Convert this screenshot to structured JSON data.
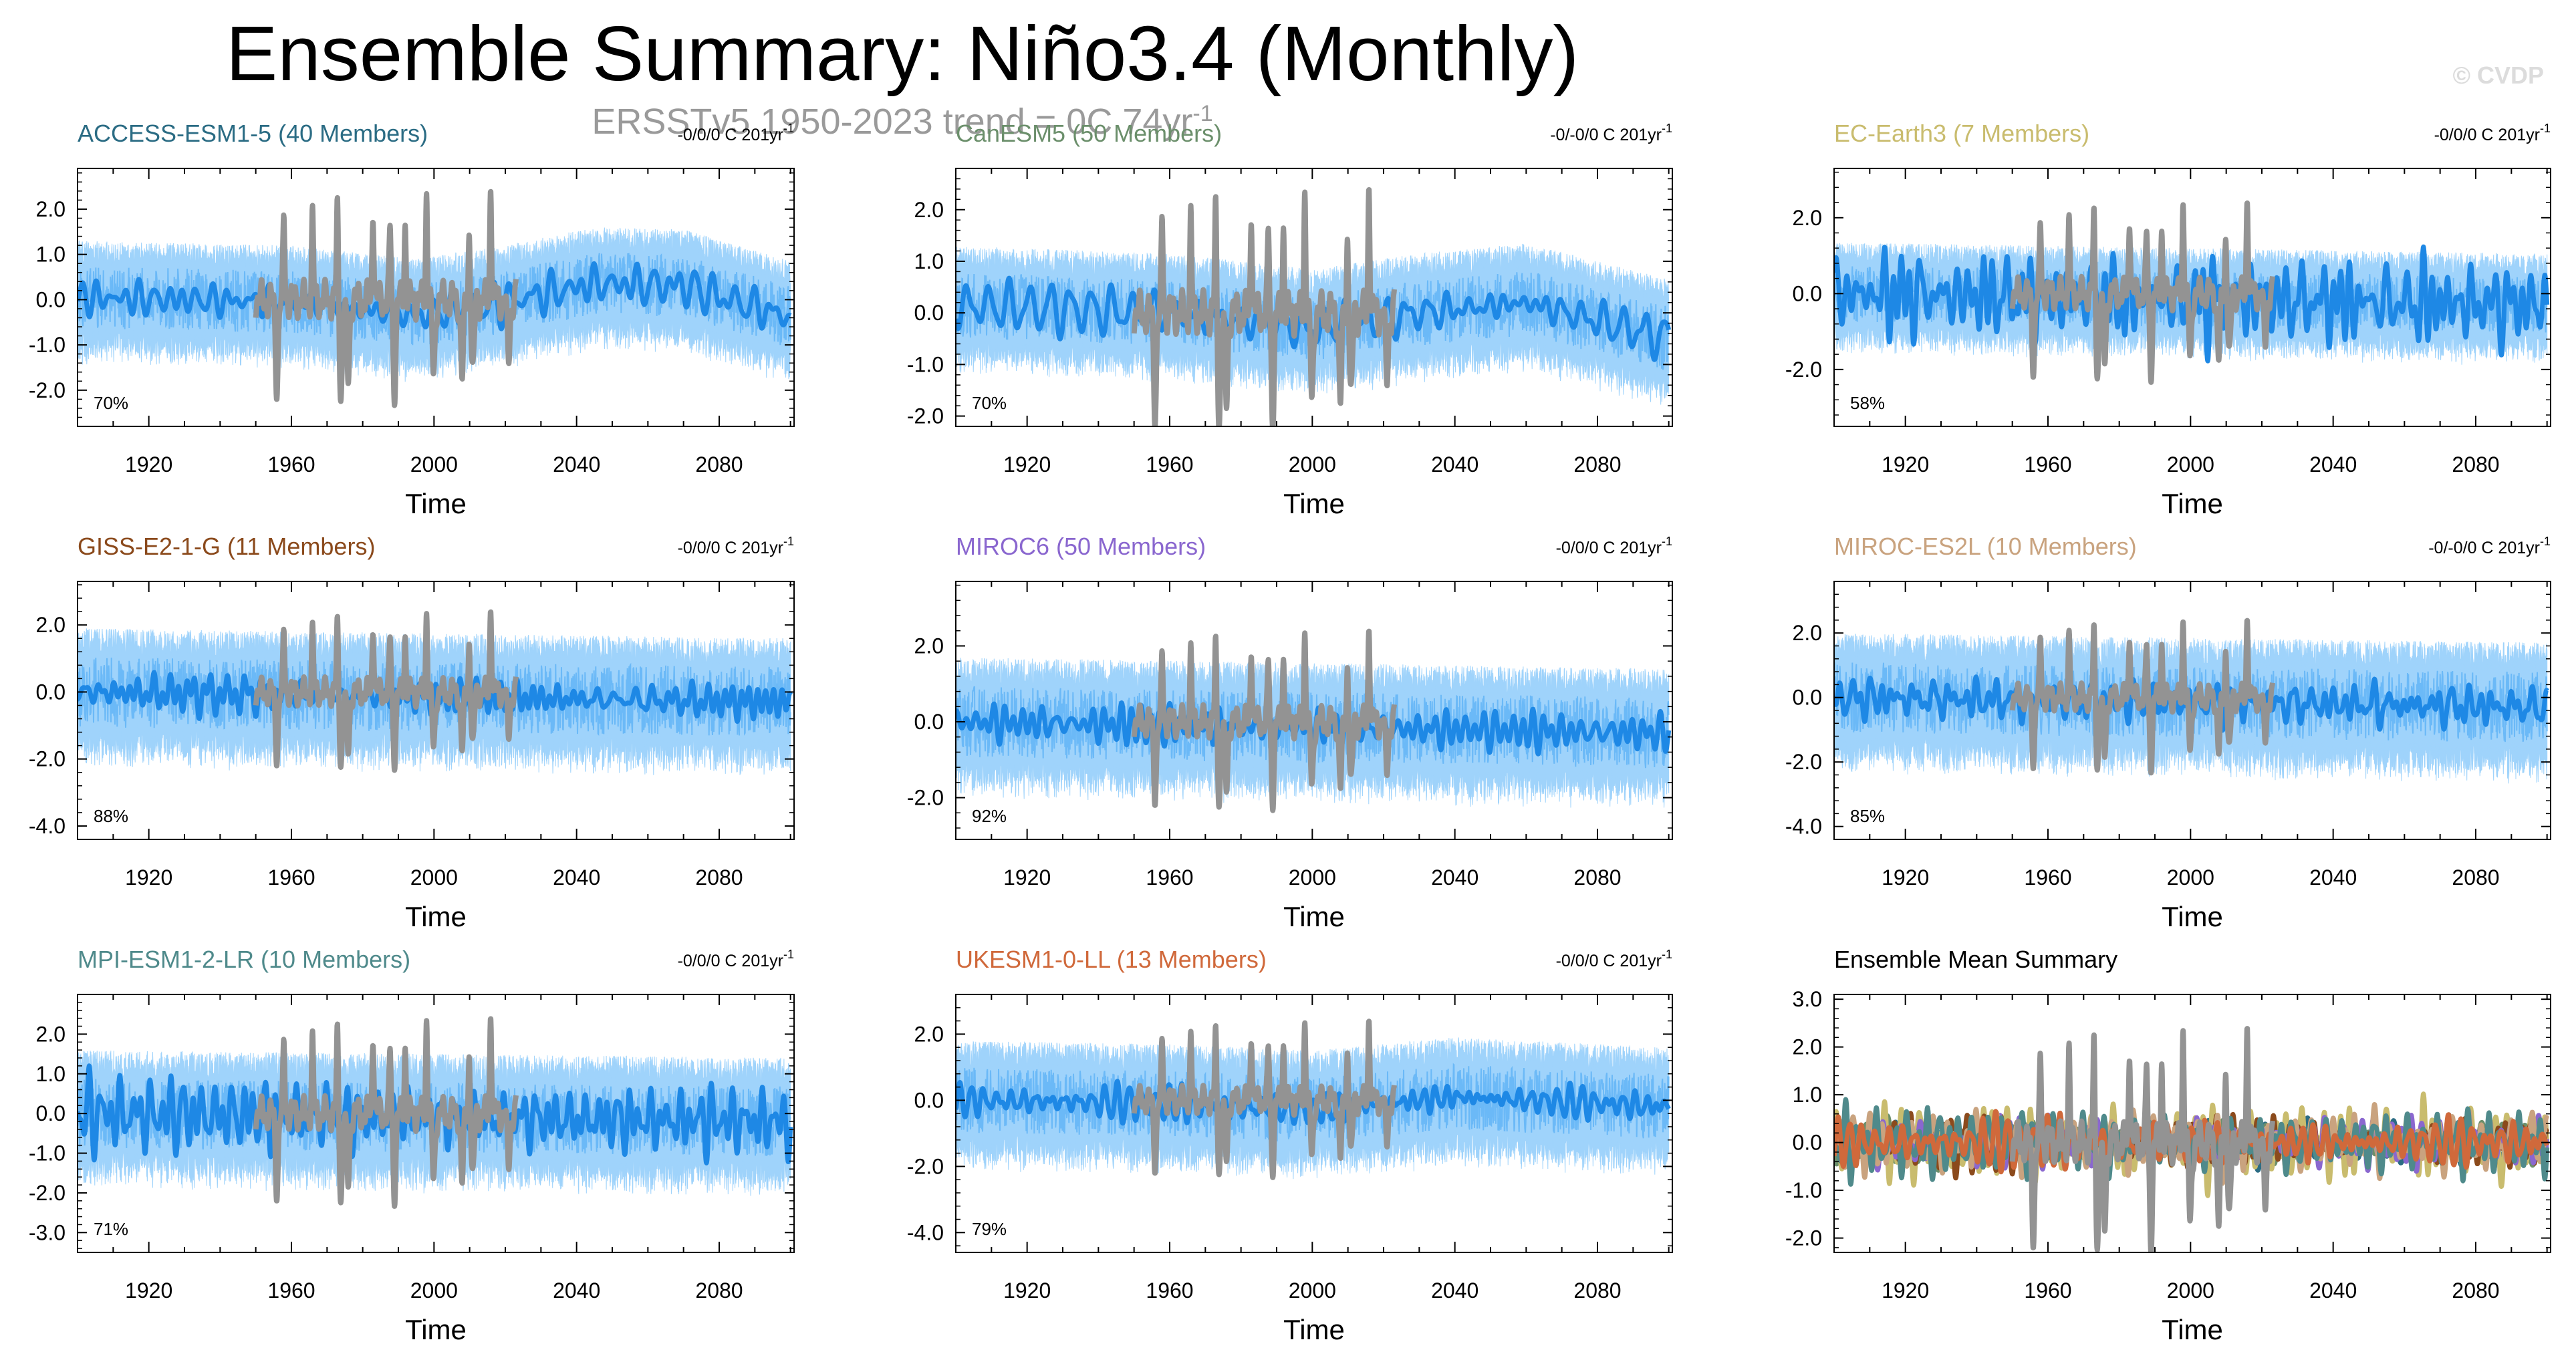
{
  "figure": {
    "title": "Ensemble Summary: Niño3.4 (Monthly)",
    "subtitle": "ERSSTv5 1950-2023 trend = 0C 74yr",
    "subtitle_sup": "-1",
    "watermark": "© CVDP",
    "colors": {
      "envelope": "#9fd3fb",
      "spread": "#5ab0f5",
      "mean": "#1e88e5",
      "obs": "#939393",
      "axis": "#000000"
    }
  },
  "chart_data": [
    {
      "type": "line",
      "title": "ACCESS-ESM1-5 (40 Members)",
      "title_color": "#2b6c84",
      "trend_label": "-0/0/0 C 201yr",
      "trend_sup": "-1",
      "percent_label": "70%",
      "xlabel": "Time",
      "xlim": [
        1900,
        2101
      ],
      "ylim": [
        -2.8,
        2.9
      ],
      "xticks": [
        1920,
        1960,
        2000,
        2040,
        2080
      ],
      "yticks": [
        2.0,
        1.0,
        0.0,
        -1.0,
        -2.0
      ],
      "ytick_labels": [
        "2.0",
        "1.0",
        "0.0",
        "-1.0",
        "-2.0"
      ],
      "series": [
        {
          "name": "ensemble envelope",
          "x_range": [
            1900,
            2100
          ],
          "seed": 11,
          "amplitude": 1.25,
          "trend_points": [
            [
              1900,
              0.05
            ],
            [
              1960,
              -0.05
            ],
            [
              1995,
              -0.35
            ],
            [
              2020,
              -0.05
            ],
            [
              2045,
              0.35
            ],
            [
              2070,
              0.3
            ],
            [
              2100,
              -0.4
            ]
          ]
        },
        {
          "name": "ensemble mean",
          "x_range": [
            1900,
            2100
          ],
          "seed": 12,
          "amplitude": 0.3
        },
        {
          "name": "ERSSTv5",
          "x_range": [
            1950,
            2023
          ],
          "seed": 1,
          "amplitude": 1.0
        }
      ]
    },
    {
      "type": "line",
      "title": "CanESM5 (50 Members)",
      "title_color": "#6b8f6b",
      "trend_label": "-0/-0/0 C 201yr",
      "trend_sup": "-1",
      "percent_label": "70%",
      "xlabel": "Time",
      "xlim": [
        1900,
        2101
      ],
      "ylim": [
        -2.2,
        2.8
      ],
      "xticks": [
        1920,
        1960,
        2000,
        2040,
        2080
      ],
      "yticks": [
        2.0,
        1.0,
        0.0,
        -1.0,
        -2.0
      ],
      "ytick_labels": [
        "2.0",
        "1.0",
        "0.0",
        "-1.0",
        "-2.0"
      ],
      "series": [
        {
          "name": "ensemble envelope",
          "x_range": [
            1900,
            2100
          ],
          "seed": 21,
          "amplitude": 1.15,
          "trend_points": [
            [
              1900,
              0.15
            ],
            [
              1960,
              0.0
            ],
            [
              2000,
              -0.3
            ],
            [
              2030,
              0.0
            ],
            [
              2060,
              0.2
            ],
            [
              2100,
              -0.5
            ]
          ]
        },
        {
          "name": "ensemble mean",
          "x_range": [
            1900,
            2100
          ],
          "seed": 22,
          "amplitude": 0.3
        },
        {
          "name": "ERSSTv5",
          "x_range": [
            1950,
            2023
          ],
          "seed": 1,
          "amplitude": 1.0
        }
      ]
    },
    {
      "type": "line",
      "title": "EC-Earth3 (7 Members)",
      "title_color": "#c9bc6e",
      "trend_label": "-0/0/0 C 201yr",
      "trend_sup": "-1",
      "percent_label": "58%",
      "xlabel": "Time",
      "xlim": [
        1900,
        2101
      ],
      "ylim": [
        -3.5,
        3.3
      ],
      "xticks": [
        1920,
        1960,
        2000,
        2040,
        2080
      ],
      "yticks": [
        2.0,
        0.0,
        -2.0
      ],
      "ytick_labels": [
        "2.0",
        "0.0",
        "-2.0"
      ],
      "series": [
        {
          "name": "ensemble envelope",
          "x_range": [
            1900,
            2100
          ],
          "seed": 31,
          "amplitude": 1.35,
          "trend_points": [
            [
              1900,
              0.0
            ],
            [
              2100,
              -0.3
            ]
          ]
        },
        {
          "name": "ensemble mean",
          "x_range": [
            1900,
            2100
          ],
          "seed": 32,
          "amplitude": 0.8
        },
        {
          "name": "ERSSTv5",
          "x_range": [
            1950,
            2023
          ],
          "seed": 1,
          "amplitude": 1.0
        }
      ]
    },
    {
      "type": "line",
      "title": "GISS-E2-1-G (11 Members)",
      "title_color": "#8b4a1c",
      "trend_label": "-0/0/0 C 201yr",
      "trend_sup": "-1",
      "percent_label": "88%",
      "xlabel": "Time",
      "xlim": [
        1900,
        2101
      ],
      "ylim": [
        -4.4,
        3.3
      ],
      "xticks": [
        1920,
        1960,
        2000,
        2040,
        2080
      ],
      "yticks": [
        2.0,
        0.0,
        -2.0,
        -4.0
      ],
      "ytick_labels": [
        "2.0",
        "0.0",
        "-2.0",
        "-4.0"
      ],
      "series": [
        {
          "name": "ensemble envelope",
          "x_range": [
            1900,
            2100
          ],
          "seed": 41,
          "amplitude": 1.9,
          "trend_points": [
            [
              1900,
              0.0
            ],
            [
              2100,
              -0.3
            ]
          ]
        },
        {
          "name": "ensemble mean",
          "x_range": [
            1900,
            2100
          ],
          "seed": 42,
          "amplitude": 0.45
        },
        {
          "name": "ERSSTv5",
          "x_range": [
            1950,
            2023
          ],
          "seed": 1,
          "amplitude": 1.0
        }
      ]
    },
    {
      "type": "line",
      "title": "MIROC6 (50 Members)",
      "title_color": "#8a67cf",
      "trend_label": "-0/0/0 C 201yr",
      "trend_sup": "-1",
      "percent_label": "92%",
      "xlabel": "Time",
      "xlim": [
        1900,
        2101
      ],
      "ylim": [
        -3.1,
        3.7
      ],
      "xticks": [
        1920,
        1960,
        2000,
        2040,
        2080
      ],
      "yticks": [
        2.0,
        0.0,
        -2.0
      ],
      "ytick_labels": [
        "2.0",
        "0.0",
        "-2.0"
      ],
      "series": [
        {
          "name": "ensemble envelope",
          "x_range": [
            1900,
            2100
          ],
          "seed": 51,
          "amplitude": 1.7,
          "trend_points": [
            [
              1900,
              0.0
            ],
            [
              2100,
              -0.3
            ]
          ]
        },
        {
          "name": "ensemble mean",
          "x_range": [
            1900,
            2100
          ],
          "seed": 52,
          "amplitude": 0.35
        },
        {
          "name": "ERSSTv5",
          "x_range": [
            1950,
            2023
          ],
          "seed": 1,
          "amplitude": 1.0
        }
      ]
    },
    {
      "type": "line",
      "title": "MIROC-ES2L (10 Members)",
      "title_color": "#c9a37f",
      "trend_label": "-0/-0/0 C 201yr",
      "trend_sup": "-1",
      "percent_label": "85%",
      "xlabel": "Time",
      "xlim": [
        1900,
        2101
      ],
      "ylim": [
        -4.4,
        3.6
      ],
      "xticks": [
        1920,
        1960,
        2000,
        2040,
        2080
      ],
      "yticks": [
        2.0,
        0.0,
        -2.0,
        -4.0
      ],
      "ytick_labels": [
        "2.0",
        "0.0",
        "-2.0",
        "-4.0"
      ],
      "series": [
        {
          "name": "ensemble envelope",
          "x_range": [
            1900,
            2100
          ],
          "seed": 61,
          "amplitude": 2.0,
          "trend_points": [
            [
              1900,
              0.0
            ],
            [
              2100,
              -0.3
            ]
          ]
        },
        {
          "name": "ensemble mean",
          "x_range": [
            1900,
            2100
          ],
          "seed": 62,
          "amplitude": 0.45
        },
        {
          "name": "ERSSTv5",
          "x_range": [
            1950,
            2023
          ],
          "seed": 1,
          "amplitude": 1.0
        }
      ]
    },
    {
      "type": "line",
      "title": "MPI-ESM1-2-LR (10 Members)",
      "title_color": "#4f8a8b",
      "trend_label": "-0/0/0 C 201yr",
      "trend_sup": "-1",
      "percent_label": "71%",
      "xlabel": "Time",
      "xlim": [
        1900,
        2101
      ],
      "ylim": [
        -3.5,
        3.0
      ],
      "xticks": [
        1920,
        1960,
        2000,
        2040,
        2080
      ],
      "yticks": [
        2.0,
        1.0,
        0.0,
        -1.0,
        -2.0,
        -3.0
      ],
      "ytick_labels": [
        "2.0",
        "1.0",
        "0.0",
        "-1.0",
        "-2.0",
        "-3.0"
      ],
      "series": [
        {
          "name": "ensemble envelope",
          "x_range": [
            1900,
            2100
          ],
          "seed": 71,
          "amplitude": 1.6,
          "trend_points": [
            [
              1900,
              0.0
            ],
            [
              2100,
              -0.2
            ]
          ]
        },
        {
          "name": "ensemble mean",
          "x_range": [
            1900,
            2100
          ],
          "seed": 72,
          "amplitude": 0.6
        },
        {
          "name": "ERSSTv5",
          "x_range": [
            1950,
            2023
          ],
          "seed": 1,
          "amplitude": 1.0
        }
      ]
    },
    {
      "type": "line",
      "title": "UKESM1-0-LL (13 Members)",
      "title_color": "#d0693b",
      "trend_label": "-0/0/0 C 201yr",
      "trend_sup": "-1",
      "percent_label": "79%",
      "xlabel": "Time",
      "xlim": [
        1900,
        2101
      ],
      "ylim": [
        -4.6,
        3.2
      ],
      "xticks": [
        1920,
        1960,
        2000,
        2040,
        2080
      ],
      "yticks": [
        2.0,
        0.0,
        -2.0,
        -4.0
      ],
      "ytick_labels": [
        "2.0",
        "0.0",
        "-2.0",
        "-4.0"
      ],
      "series": [
        {
          "name": "ensemble envelope",
          "x_range": [
            1900,
            2100
          ],
          "seed": 81,
          "amplitude": 1.8,
          "trend_points": [
            [
              1900,
              0.0
            ],
            [
              1960,
              -0.1
            ],
            [
              2000,
              -0.3
            ],
            [
              2040,
              0.1
            ],
            [
              2100,
              -0.2
            ]
          ]
        },
        {
          "name": "ensemble mean",
          "x_range": [
            1900,
            2100
          ],
          "seed": 82,
          "amplitude": 0.35
        },
        {
          "name": "ERSSTv5",
          "x_range": [
            1950,
            2023
          ],
          "seed": 1,
          "amplitude": 1.0
        }
      ]
    },
    {
      "type": "line",
      "title": "Ensemble Mean Summary",
      "title_color": "#000000",
      "trend_label": "",
      "trend_sup": "",
      "percent_label": "",
      "xlabel": "Time",
      "xlim": [
        1900,
        2101
      ],
      "ylim": [
        -2.3,
        3.1
      ],
      "xticks": [
        1920,
        1960,
        2000,
        2040,
        2080
      ],
      "yticks": [
        3.0,
        2.0,
        1.0,
        0.0,
        -1.0,
        -2.0
      ],
      "ytick_labels": [
        "3.0",
        "2.0",
        "1.0",
        "0.0",
        "-1.0",
        "-2.0"
      ],
      "series": [
        {
          "name": "ERSSTv5",
          "x_range": [
            1950,
            2023
          ],
          "seed": 1,
          "amplitude": 1.0,
          "color": "#939393"
        },
        {
          "name": "ACCESS-ESM1-5",
          "x_range": [
            1900,
            2100
          ],
          "seed": 12,
          "amplitude": 0.3,
          "color": "#2b6c84"
        },
        {
          "name": "CanESM5",
          "x_range": [
            1900,
            2100
          ],
          "seed": 22,
          "amplitude": 0.3,
          "color": "#6b8f6b"
        },
        {
          "name": "EC-Earth3",
          "x_range": [
            1900,
            2100
          ],
          "seed": 32,
          "amplitude": 0.55,
          "color": "#c9bc6e"
        },
        {
          "name": "GISS-E2-1-G",
          "x_range": [
            1900,
            2100
          ],
          "seed": 42,
          "amplitude": 0.45,
          "color": "#8b4a1c"
        },
        {
          "name": "MIROC6",
          "x_range": [
            1900,
            2100
          ],
          "seed": 52,
          "amplitude": 0.35,
          "color": "#8a67cf"
        },
        {
          "name": "MIROC-ES2L",
          "x_range": [
            1900,
            2100
          ],
          "seed": 62,
          "amplitude": 0.45,
          "color": "#c9a37f"
        },
        {
          "name": "MPI-ESM1-2-LR",
          "x_range": [
            1900,
            2100
          ],
          "seed": 72,
          "amplitude": 0.45,
          "color": "#4f8a8b"
        },
        {
          "name": "UKESM1-0-LL",
          "x_range": [
            1900,
            2100
          ],
          "seed": 82,
          "amplitude": 0.35,
          "color": "#d0693b"
        }
      ]
    }
  ]
}
